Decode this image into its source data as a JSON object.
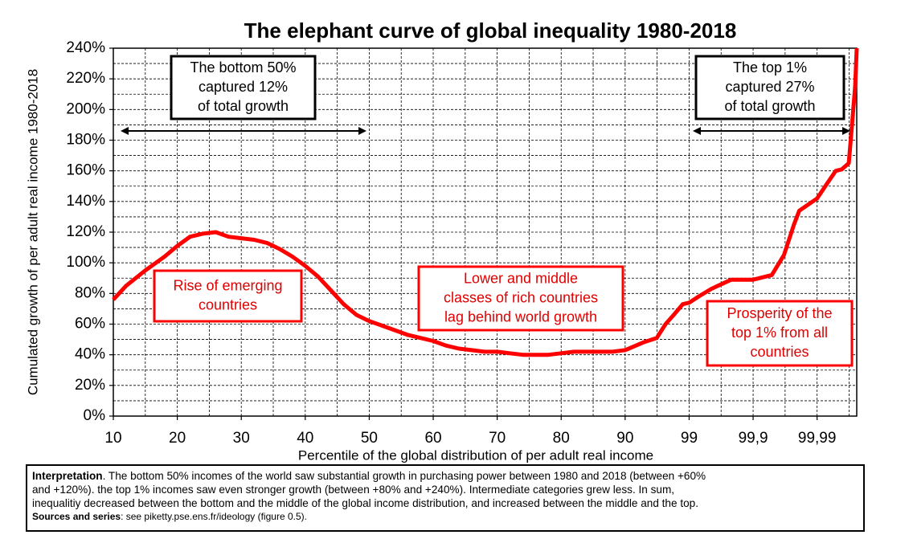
{
  "chart_data": {
    "type": "line",
    "title": "The elephant curve of global inequality 1980-2018",
    "ylabel": "Cumulated growth of per adult real income 1980-2018",
    "xlabel": "Percentile of the global distribution of per adult real income",
    "xscale": "log-tail",
    "xlim": [
      10,
      99.9976
    ],
    "ylim": [
      0,
      240
    ],
    "xticks": [
      10,
      20,
      30,
      40,
      50,
      60,
      70,
      80,
      90,
      99,
      {
        "value": 99.9,
        "label": "99,9"
      },
      {
        "value": 99.99,
        "label": "99,99"
      }
    ],
    "yticks": [
      {
        "value": 0,
        "label": "0%"
      },
      {
        "value": 20,
        "label": "20%"
      },
      {
        "value": 40,
        "label": "40%"
      },
      {
        "value": 60,
        "label": "60%"
      },
      {
        "value": 80,
        "label": "80%"
      },
      {
        "value": 100,
        "label": "100%"
      },
      {
        "value": 120,
        "label": "120%"
      },
      {
        "value": 140,
        "label": "140%"
      },
      {
        "value": 160,
        "label": "160%"
      },
      {
        "value": 180,
        "label": "180%"
      },
      {
        "value": 200,
        "label": "200%"
      },
      {
        "value": 220,
        "label": "220%"
      },
      {
        "value": 240,
        "label": "240%"
      }
    ],
    "grid": true,
    "color": "#ff0000",
    "x": [
      10,
      12,
      15,
      18,
      20,
      22,
      24,
      26,
      28,
      30,
      32,
      34,
      36,
      38,
      40,
      42,
      44,
      46,
      48,
      50,
      52,
      54,
      56,
      58,
      60,
      62,
      64,
      66,
      68,
      70,
      72,
      74,
      76,
      78,
      80,
      82,
      84,
      86,
      88,
      90,
      94.75,
      96.8,
      97.66,
      98.26,
      98.74,
      99,
      99.29,
      99.55,
      99.78,
      99.9,
      99.949,
      99.967,
      99.977,
      99.981,
      99.99,
      99.9931,
      99.9949,
      99.9959,
      99.9968,
      99.99715,
      99.99746,
      99.9976
    ],
    "values": [
      76,
      85,
      95,
      104,
      111,
      117,
      119,
      120,
      117,
      116,
      115,
      113,
      109,
      104,
      98,
      91,
      82,
      73,
      66,
      62,
      59,
      56,
      53,
      51,
      49,
      46,
      44,
      43,
      42,
      42,
      41,
      40,
      40,
      40,
      41,
      42,
      42,
      42,
      42,
      43,
      48,
      51,
      60,
      66,
      73,
      74,
      78,
      83,
      89,
      89,
      92,
      105,
      125,
      134,
      142,
      152,
      160,
      161,
      165,
      190,
      215,
      240
    ],
    "annotations": [
      {
        "lines": [
          "The bottom 50%",
          "captured 12%",
          "of total growth"
        ],
        "color": "#000000"
      },
      {
        "lines": [
          "The top 1%",
          "captured 27%",
          "of total growth"
        ],
        "color": "#000000"
      },
      {
        "lines": [
          "Rise of emerging",
          "countries"
        ],
        "color": "#ff0000"
      },
      {
        "lines": [
          "Lower and middle",
          "classes of rich countries",
          "lag behind world growth"
        ],
        "color": "#ff0000"
      },
      {
        "lines": [
          "Prosperity of the",
          "top 1% from all",
          "countries"
        ],
        "color": "#ff0000"
      }
    ]
  },
  "note": {
    "label": "Interpretation",
    "lines": [
      ". The bottom 50% incomes of the world saw substantial growth in purchasing power between 1980 and 2018 (between +60%",
      "and +120%). the top 1% incomes saw even stronger growth (between +80% and +240%). Intermediate categories grew less. In sum,",
      "inequalitiy decreased between the bottom and the middle of the global income distribution, and increased between the middle and the top."
    ],
    "source_label": "Sources and series",
    "source": ": see piketty.pse.ens.fr/ideology (figure 0.5)."
  }
}
